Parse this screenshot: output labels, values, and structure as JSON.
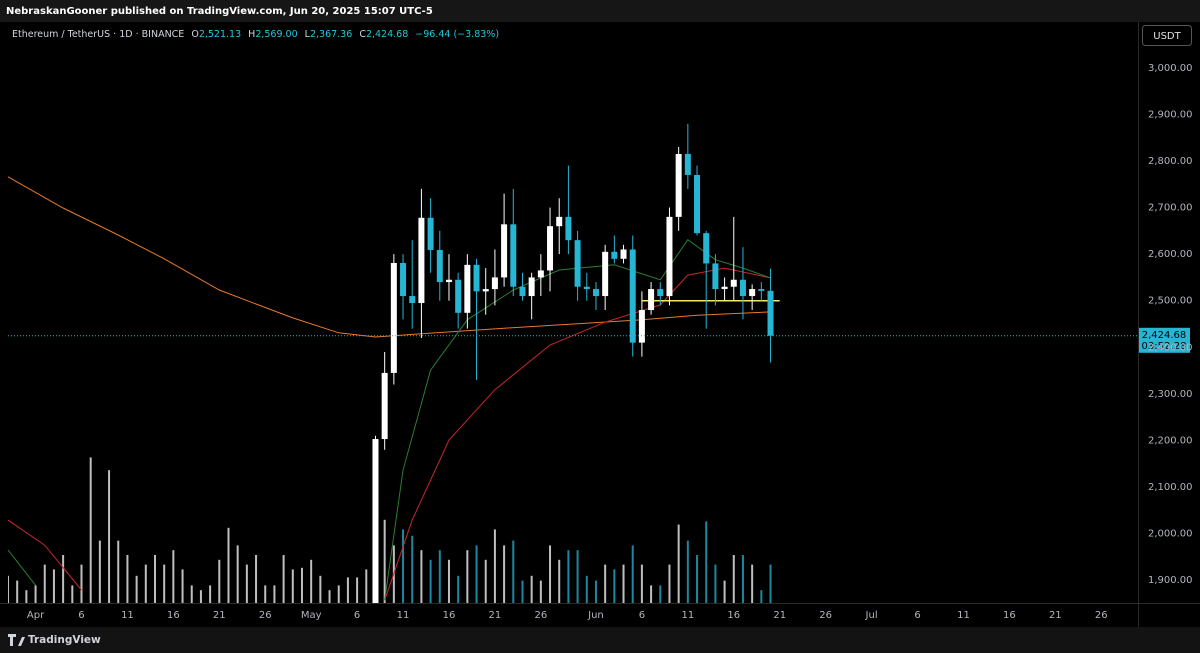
{
  "published": "NebraskanGooner published on TradingView.com, Jun 20, 2025 15:07 UTC-5",
  "brand": "TradingView",
  "chart_data": {
    "type": "candlestick",
    "symbol": "Ethereum / TetherUS · 1D · BINANCE",
    "ohlc_header": [
      {
        "label": "O",
        "value": "2,521.13"
      },
      {
        "label": "H",
        "value": "2,569.00"
      },
      {
        "label": "L",
        "value": "2,367.36"
      },
      {
        "label": "C",
        "value": "2,424.68"
      }
    ],
    "change": "−96.44 (−3.83%)",
    "currency": "USDT",
    "last_price_label": "2,424.68",
    "countdown": "03:52:28",
    "up_color": "#ffffff",
    "down_color": "#26b6d4",
    "x": [
      "May 8",
      "May 9",
      "May 10",
      "May 11",
      "May 12",
      "May 13",
      "May 14",
      "May 15",
      "May 16",
      "May 17",
      "May 18",
      "May 19",
      "May 20",
      "May 21",
      "May 22",
      "May 23",
      "May 24",
      "May 25",
      "May 26",
      "May 27",
      "May 28",
      "May 29",
      "May 30",
      "May 31",
      "Jun 1",
      "Jun 2",
      "Jun 3",
      "Jun 4",
      "Jun 5",
      "Jun 6",
      "Jun 7",
      "Jun 8",
      "Jun 9",
      "Jun 10",
      "Jun 11",
      "Jun 12",
      "Jun 13",
      "Jun 14",
      "Jun 15",
      "Jun 16",
      "Jun 17",
      "Jun 18",
      "Jun 19",
      "Jun 20"
    ],
    "open": [
      1812,
      2203,
      2345,
      2581,
      2510,
      2495,
      2678,
      2609,
      2540,
      2545,
      2474,
      2577,
      2520,
      2525,
      2550,
      2664,
      2530,
      2510,
      2550,
      2565,
      2660,
      2680,
      2630,
      2530,
      2525,
      2510,
      2605,
      2590,
      2610,
      2410,
      2480,
      2525,
      2510,
      2680,
      2815,
      2770,
      2645,
      2580,
      2525,
      2530,
      2545,
      2510,
      2525,
      2521.13
    ],
    "high": [
      2210,
      2390,
      2600,
      2600,
      2630,
      2740,
      2720,
      2650,
      2600,
      2560,
      2600,
      2590,
      2570,
      2610,
      2730,
      2740,
      2560,
      2560,
      2600,
      2700,
      2720,
      2790,
      2650,
      2560,
      2540,
      2620,
      2640,
      2620,
      2640,
      2520,
      2540,
      2540,
      2700,
      2830,
      2880,
      2790,
      2650,
      2600,
      2550,
      2680,
      2615,
      2535,
      2540,
      2569
    ],
    "low": [
      1795,
      2180,
      2320,
      2460,
      2440,
      2420,
      2560,
      2500,
      2500,
      2440,
      2440,
      2330,
      2470,
      2490,
      2530,
      2510,
      2500,
      2460,
      2510,
      2520,
      2600,
      2600,
      2500,
      2500,
      2480,
      2480,
      2580,
      2580,
      2380,
      2380,
      2470,
      2490,
      2490,
      2650,
      2740,
      2640,
      2440,
      2490,
      2500,
      2500,
      2460,
      2480,
      2500,
      2367.36
    ],
    "close": [
      2203,
      2345,
      2581,
      2510,
      2495,
      2678,
      2609,
      2540,
      2545,
      2474,
      2577,
      2520,
      2525,
      2550,
      2664,
      2530,
      2510,
      2550,
      2565,
      2660,
      2680,
      2630,
      2530,
      2525,
      2510,
      2605,
      2590,
      2610,
      2410,
      2480,
      2525,
      2510,
      2680,
      2815,
      2770,
      2645,
      2580,
      2525,
      2530,
      2545,
      2510,
      2525,
      2521.13,
      2424.68
    ],
    "volume": {
      "color": "#ffffff",
      "x": [
        "Mar 29",
        "Mar 30",
        "Mar 31",
        "Apr 1",
        "Apr 2",
        "Apr 3",
        "Apr 4",
        "Apr 5",
        "Apr 6",
        "Apr 7",
        "Apr 8",
        "Apr 9",
        "Apr 10",
        "Apr 11",
        "Apr 12",
        "Apr 13",
        "Apr 14",
        "Apr 15",
        "Apr 16",
        "Apr 17",
        "Apr 18",
        "Apr 19",
        "Apr 20",
        "Apr 21",
        "Apr 22",
        "Apr 23",
        "Apr 24",
        "Apr 25",
        "Apr 26",
        "Apr 27",
        "Apr 28",
        "Apr 29",
        "Apr 30",
        "May 1",
        "May 2",
        "May 3",
        "May 4",
        "May 5",
        "May 6",
        "May 7",
        "May 8",
        "May 9",
        "May 10",
        "May 11",
        "May 12",
        "May 13",
        "May 14",
        "May 15",
        "May 16",
        "May 17",
        "May 18",
        "May 19",
        "May 20",
        "May 21",
        "May 22",
        "May 23",
        "May 24",
        "May 25",
        "May 26",
        "May 27",
        "May 28",
        "May 29",
        "May 30",
        "May 31",
        "Jun 1",
        "Jun 2",
        "Jun 3",
        "Jun 4",
        "Jun 5",
        "Jun 6",
        "Jun 7",
        "Jun 8",
        "Jun 9",
        "Jun 10",
        "Jun 11",
        "Jun 12",
        "Jun 13",
        "Jun 14",
        "Jun 15",
        "Jun 16",
        "Jun 17",
        "Jun 18",
        "Jun 19",
        "Jun 20"
      ],
      "values": [
        17,
        14,
        8,
        11,
        24,
        21,
        30,
        11,
        24,
        91,
        39,
        83,
        39,
        30,
        17,
        24,
        30,
        24,
        33,
        21,
        11,
        8,
        11,
        27,
        47,
        36,
        24,
        30,
        11,
        11,
        30,
        21,
        22,
        27,
        17,
        8,
        11,
        16,
        16,
        21,
        86,
        52,
        36,
        46,
        42,
        33,
        27,
        33,
        27,
        17,
        33,
        36,
        27,
        46,
        36,
        39,
        14,
        17,
        14,
        36,
        27,
        33,
        33,
        17,
        14,
        24,
        21,
        24,
        36,
        24,
        11,
        11,
        24,
        49,
        39,
        30,
        51,
        24,
        14,
        30,
        30,
        24,
        8,
        24
      ]
    },
    "series": [
      {
        "color": "#e8792b",
        "x": [
          "Mar 29",
          "Apr 4",
          "Apr 10",
          "Apr 15",
          "Apr 21",
          "Apr 25",
          "Apr 29",
          "May 4",
          "May 8",
          "May 13",
          "May 22",
          "May 28",
          "Jun 6",
          "Jun 12",
          "Jun 20"
        ],
        "values": [
          2766,
          2699,
          2641,
          2590,
          2523,
          2493,
          2463,
          2431,
          2422,
          2429,
          2441,
          2448,
          2459,
          2469,
          2476
        ]
      },
      {
        "color": "#c62828",
        "x": [
          "Mar 29",
          "Apr 2",
          "Apr 6",
          "May 1",
          "May 9",
          "May 12",
          "May 16",
          "May 21",
          "May 27",
          "Jun 2",
          "Jun 8",
          "Jun 11",
          "Jun 15",
          "Jun 20"
        ],
        "values": [
          2029,
          1975,
          1879,
          null,
          1857,
          2029,
          2201,
          2309,
          2405,
          2454,
          2491,
          2555,
          2570,
          2549
        ]
      },
      {
        "color": "#2e7d32",
        "x": [
          "Mar 29",
          "Apr 1",
          "May 1",
          "May 9",
          "May 11",
          "May 14",
          "May 18",
          "May 23",
          "May 28",
          "Jun 3",
          "Jun 8",
          "Jun 11",
          "Jun 14",
          "Jun 17",
          "Jun 20"
        ],
        "values": [
          1965,
          1889,
          null,
          1857,
          2136,
          2351,
          2459,
          2523,
          2566,
          2577,
          2545,
          2631,
          2588,
          2570,
          2549
        ]
      }
    ],
    "hline": {
      "value": 2500,
      "from": "Jun 6",
      "to": "Jun 21",
      "color": "#f5e663"
    },
    "xlim": [
      "Mar 29",
      "Jul 30"
    ],
    "xticks": [
      {
        "value": "Apr 1",
        "label": "Apr"
      },
      {
        "value": "Apr 6",
        "label": "6"
      },
      {
        "value": "Apr 11",
        "label": "11"
      },
      {
        "value": "Apr 16",
        "label": "16"
      },
      {
        "value": "Apr 21",
        "label": "21"
      },
      {
        "value": "Apr 26",
        "label": "26"
      },
      {
        "value": "May 1",
        "label": "May"
      },
      {
        "value": "May 6",
        "label": "6"
      },
      {
        "value": "May 11",
        "label": "11"
      },
      {
        "value": "May 16",
        "label": "16"
      },
      {
        "value": "May 21",
        "label": "21"
      },
      {
        "value": "May 26",
        "label": "26"
      },
      {
        "value": "Jun 1",
        "label": "Jun"
      },
      {
        "value": "Jun 6",
        "label": "6"
      },
      {
        "value": "Jun 11",
        "label": "11"
      },
      {
        "value": "Jun 16",
        "label": "16"
      },
      {
        "value": "Jun 21",
        "label": "21"
      },
      {
        "value": "Jun 26",
        "label": "26"
      },
      {
        "value": "Jul 1",
        "label": "Jul"
      },
      {
        "value": "Jul 6",
        "label": "6"
      },
      {
        "value": "Jul 11",
        "label": "11"
      },
      {
        "value": "Jul 16",
        "label": "16"
      },
      {
        "value": "Jul 21",
        "label": "21"
      },
      {
        "value": "Jul 26",
        "label": "26"
      }
    ],
    "ylim": [
      1851,
      3049
    ],
    "yticks": [
      {
        "value": 1900,
        "label": "1,900.00"
      },
      {
        "value": 2000,
        "label": "2,000.00"
      },
      {
        "value": 2100,
        "label": "2,100.00"
      },
      {
        "value": 2200,
        "label": "2,200.00"
      },
      {
        "value": 2300,
        "label": "2,300.00"
      },
      {
        "value": 2400,
        "label": "2,400.00"
      },
      {
        "value": 2500,
        "label": "2,500.00"
      },
      {
        "value": 2600,
        "label": "2,600.00"
      },
      {
        "value": 2700,
        "label": "2,700.00"
      },
      {
        "value": 2800,
        "label": "2,800.00"
      },
      {
        "value": 2900,
        "label": "2,900.00"
      },
      {
        "value": 3000,
        "label": "3,000.00"
      }
    ],
    "grid": false
  }
}
